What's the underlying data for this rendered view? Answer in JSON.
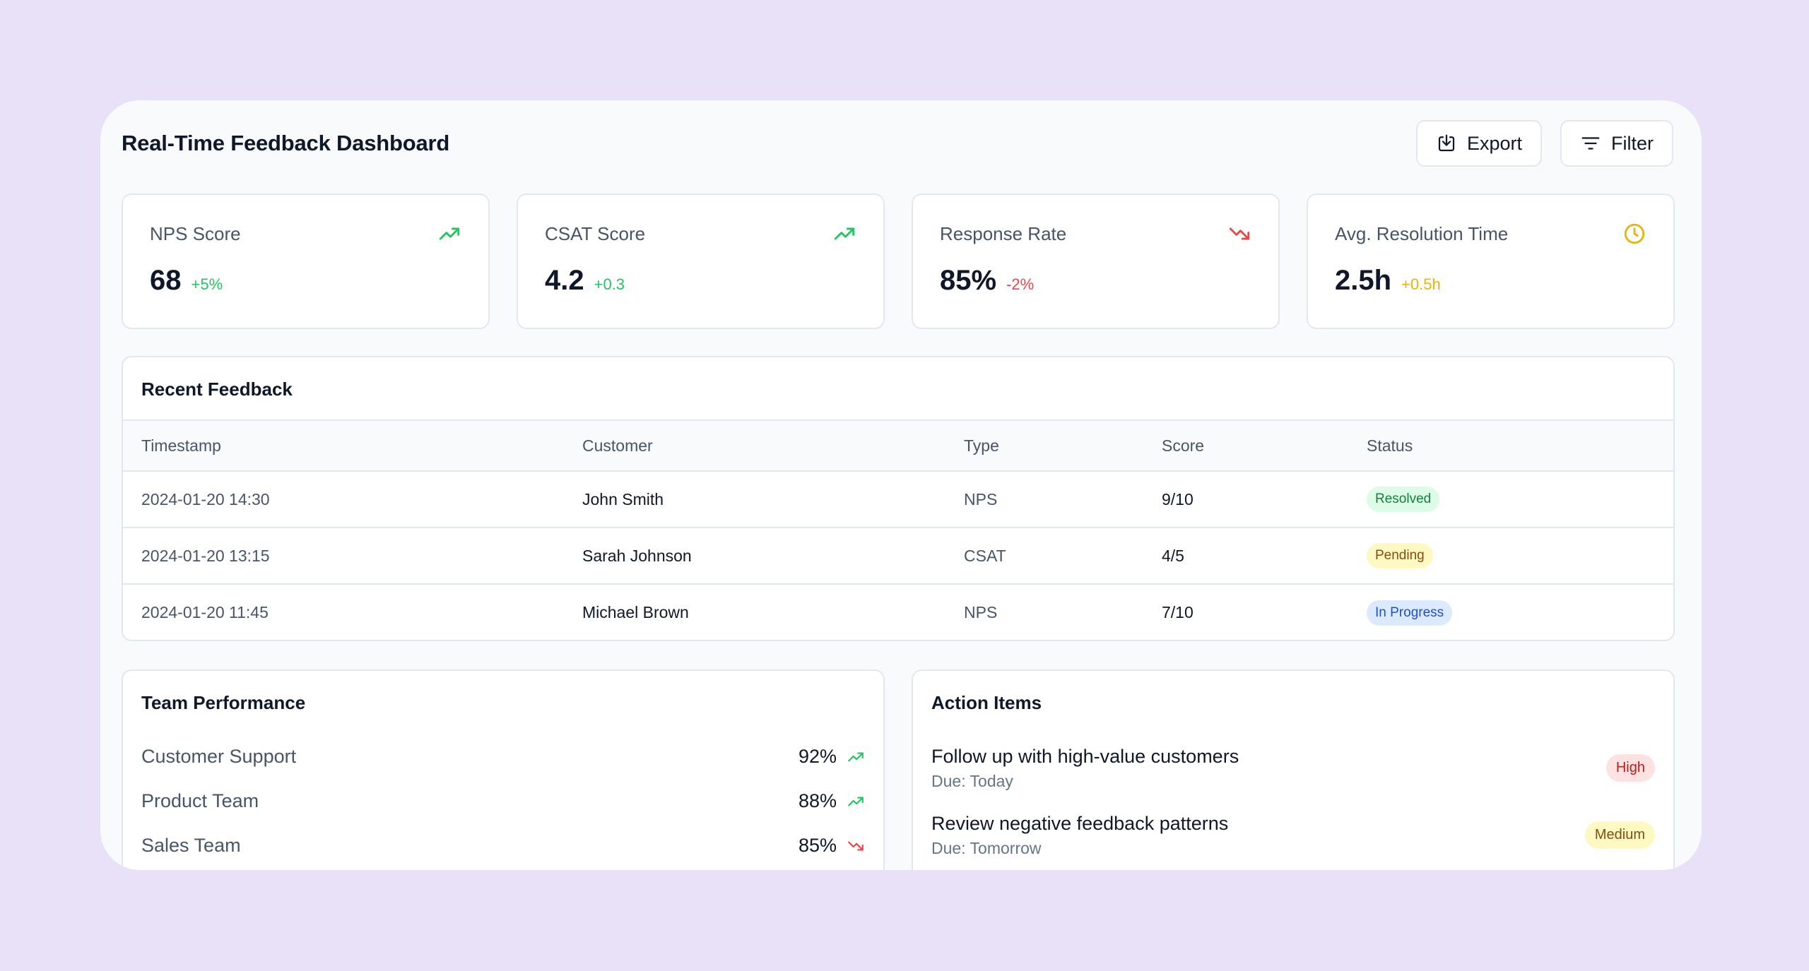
{
  "header": {
    "title": "Real-Time Feedback Dashboard",
    "export_label": "Export",
    "filter_label": "Filter"
  },
  "metrics": [
    {
      "label": "NPS Score",
      "value": "68",
      "delta": "+5%",
      "trend": "up",
      "color": "#22c55e",
      "icon": "trending-up-icon"
    },
    {
      "label": "CSAT Score",
      "value": "4.2",
      "delta": "+0.3",
      "trend": "up",
      "color": "#22c55e",
      "icon": "trending-up-icon"
    },
    {
      "label": "Response Rate",
      "value": "85%",
      "delta": "-2%",
      "trend": "down",
      "color": "#ef4444",
      "icon": "trending-down-icon"
    },
    {
      "label": "Avg. Resolution Time",
      "value": "2.5h",
      "delta": "+0.5h",
      "trend": "neutral",
      "color": "#eab308",
      "icon": "clock-icon"
    }
  ],
  "recent_feedback": {
    "title": "Recent Feedback",
    "columns": [
      "Timestamp",
      "Customer",
      "Type",
      "Score",
      "Status"
    ],
    "rows": [
      {
        "timestamp": "2024-01-20 14:30",
        "customer": "John Smith",
        "type": "NPS",
        "score": "9/10",
        "status": "Resolved"
      },
      {
        "timestamp": "2024-01-20 13:15",
        "customer": "Sarah Johnson",
        "type": "CSAT",
        "score": "4/5",
        "status": "Pending"
      },
      {
        "timestamp": "2024-01-20 11:45",
        "customer": "Michael Brown",
        "type": "NPS",
        "score": "7/10",
        "status": "In Progress"
      }
    ]
  },
  "team_performance": {
    "title": "Team Performance",
    "teams": [
      {
        "name": "Customer Support",
        "value": "92%",
        "trend": "up"
      },
      {
        "name": "Product Team",
        "value": "88%",
        "trend": "up"
      },
      {
        "name": "Sales Team",
        "value": "85%",
        "trend": "down"
      }
    ]
  },
  "action_items": {
    "title": "Action Items",
    "items": [
      {
        "title": "Follow up with high-value customers",
        "due": "Due: Today",
        "priority": "High"
      },
      {
        "title": "Review negative feedback patterns",
        "due": "Due: Tomorrow",
        "priority": "Medium"
      }
    ]
  },
  "colors": {
    "background": "#e8e1f8",
    "positive": "#22c55e",
    "negative": "#ef4444",
    "warning": "#eab308"
  }
}
